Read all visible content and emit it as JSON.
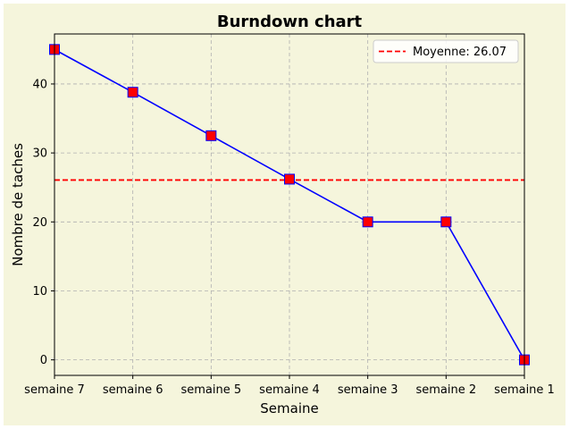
{
  "chart_data": {
    "type": "line",
    "title": "Burndown chart",
    "xlabel": "Semaine",
    "ylabel": "Nombre de taches",
    "categories": [
      "semaine 7",
      "semaine 6",
      "semaine 5",
      "semaine 4",
      "semaine 3",
      "semaine 2",
      "semaine 1"
    ],
    "series": [
      {
        "values": [
          45,
          38.8,
          32.5,
          26.2,
          20,
          20,
          0
        ],
        "color": "#0000ff",
        "marker": "square",
        "marker_fill": "#ff0000"
      }
    ],
    "average_line": {
      "label": "Moyenne: 26.07",
      "value": 26.07,
      "color": "#ff0000",
      "style": "dashed"
    },
    "yticks": [
      0,
      10,
      20,
      30,
      40
    ],
    "ylim": [
      -2.25,
      47.25
    ],
    "grid": true,
    "legend_position": "top-right",
    "background_color": "#f5f5dc"
  }
}
